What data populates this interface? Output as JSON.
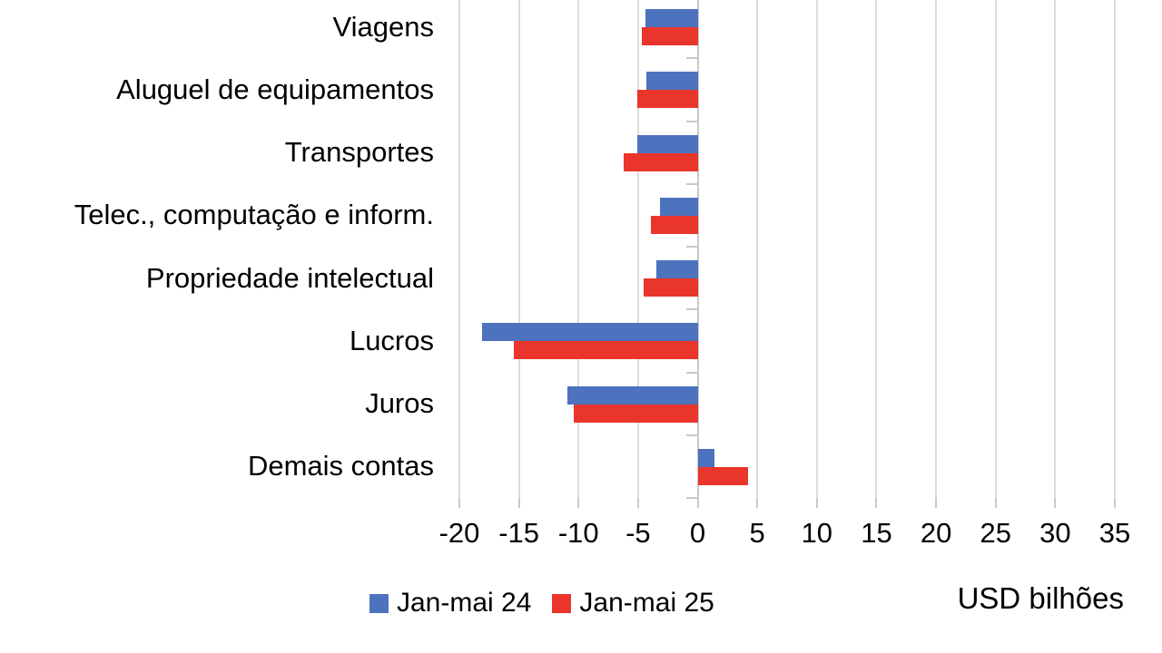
{
  "chart_data": {
    "type": "bar",
    "orientation": "horizontal",
    "title": "",
    "xlabel": "USD bilhões",
    "ylabel": "",
    "categories": [
      "Viagens",
      "Aluguel de equipamentos",
      "Transportes",
      "Telec., computação e inform.",
      "Propriedade intelectual",
      "Lucros",
      "Juros",
      "Demais contas"
    ],
    "series": [
      {
        "name": "Jan-mai 24",
        "color": "#4D72BE",
        "values": [
          -4.4,
          -4.3,
          -5.1,
          -3.2,
          -3.5,
          -18.1,
          -10.9,
          1.4
        ]
      },
      {
        "name": "Jan-mai 25",
        "color": "#E9352B",
        "values": [
          -4.7,
          -5.1,
          -6.2,
          -3.9,
          -4.5,
          -15.4,
          -10.4,
          4.2
        ]
      }
    ],
    "xlim": [
      -20,
      35
    ],
    "xtick_step": 5,
    "xticks": [
      -20,
      -15,
      -10,
      -5,
      0,
      5,
      10,
      15,
      20,
      25,
      30,
      35
    ],
    "grid": "vertical",
    "legend_position": "bottom",
    "colors": {
      "gridline": "#DCDCDC",
      "axis": "#C9C9C9",
      "text": "#000000",
      "background": "#FFFFFF"
    }
  }
}
